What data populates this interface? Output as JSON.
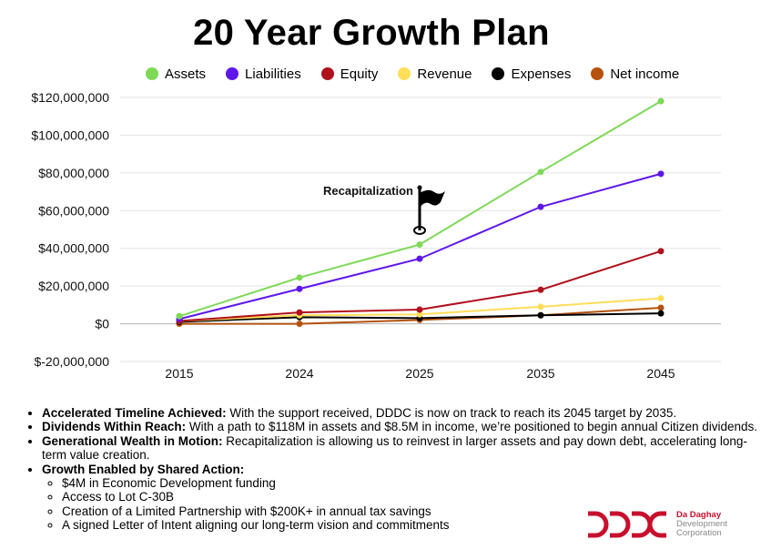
{
  "title": "20 Year Growth Plan",
  "chart_data": {
    "type": "line",
    "title": "20 Year Growth Plan",
    "categories": [
      "2015",
      "2024",
      "2025",
      "2035",
      "2045"
    ],
    "ylim": [
      -20000000,
      120000000
    ],
    "yticks": [
      -20000000,
      0,
      20000000,
      40000000,
      60000000,
      80000000,
      100000000,
      120000000
    ],
    "ytick_labels": [
      "$-20,000,000",
      "$0",
      "$20,000,000",
      "$40,000,000",
      "$60,000,000",
      "$80,000,000",
      "$100,000,000",
      "$120,000,000"
    ],
    "grid": true,
    "legend_position": "top",
    "series": [
      {
        "name": "Assets",
        "color": "#7ed957",
        "values": [
          4000000,
          24500000,
          42000000,
          80500000,
          118000000
        ]
      },
      {
        "name": "Liabilities",
        "color": "#5e17eb",
        "values": [
          2500000,
          18500000,
          34500000,
          62000000,
          79500000
        ]
      },
      {
        "name": "Equity",
        "color": "#b0101c",
        "values": [
          1500000,
          6000000,
          7500000,
          18000000,
          38500000
        ]
      },
      {
        "name": "Revenue",
        "color": "#ffde59",
        "values": [
          1500000,
          4500000,
          5000000,
          9000000,
          13500000
        ]
      },
      {
        "name": "Expenses",
        "color": "#000000",
        "values": [
          1000000,
          3500000,
          3000000,
          4500000,
          5500000
        ]
      },
      {
        "name": "Net income",
        "color": "#b5520f",
        "values": [
          0,
          0,
          2000000,
          4500000,
          8500000
        ]
      }
    ],
    "annotations": [
      {
        "text": "Recapitalization",
        "category": "2025",
        "icon": "flag-icon"
      }
    ]
  },
  "bullets": [
    {
      "bold": "Accelerated Timeline Achieved:",
      "text": " With the support received, DDDC is now on track to reach its 2045 target by 2035."
    },
    {
      "bold": "Dividends Within Reach:",
      "text": " With a path to $118M in assets and $8.5M in income, we’re positioned to begin annual Citizen dividends."
    },
    {
      "bold": "Generational Wealth in Motion:",
      "text": " Recapitalization is allowing us to reinvest in larger assets and pay down debt, accelerating long-term value creation."
    },
    {
      "bold": "Growth Enabled by Shared Action:",
      "text": ""
    }
  ],
  "sub_bullets": [
    "$4M in Economic Development funding",
    "Access to Lot C-30B",
    "Creation of a Limited Partnership with $200K+ in annual tax savings",
    "A signed Letter of Intent aligning our long-term vision and commitments"
  ],
  "logo": {
    "line1": "Da Daghay",
    "line2": "Development",
    "line3": "Corporation",
    "brand_color": "#c8102e"
  }
}
